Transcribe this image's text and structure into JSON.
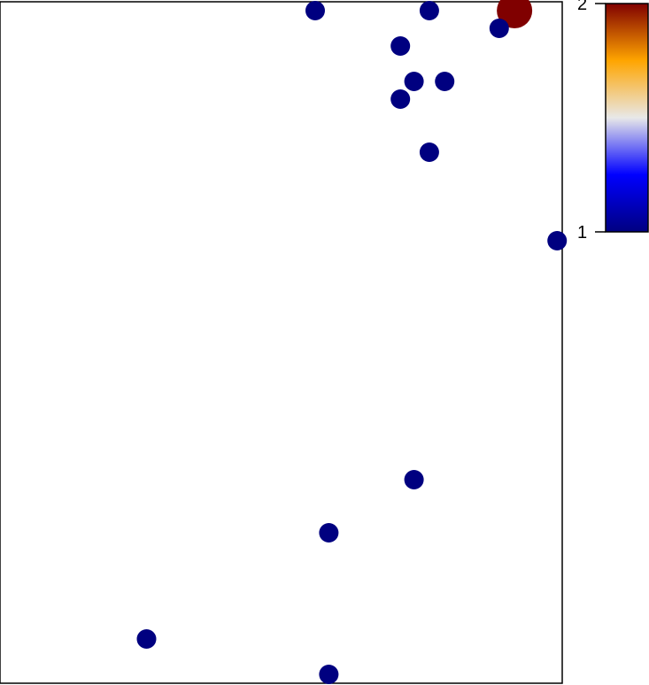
{
  "chart_data": {
    "type": "scatter",
    "title": "",
    "xlabel": "",
    "ylabel": "",
    "grid": false,
    "legend": "none",
    "xlim": [
      0,
      33
    ],
    "ylim": [
      0,
      38.5
    ],
    "points": [
      {
        "x": 18.5,
        "y": 38.0,
        "value": 1
      },
      {
        "x": 25.2,
        "y": 38.0,
        "value": 1
      },
      {
        "x": 30.2,
        "y": 38.0,
        "value": 2
      },
      {
        "x": 29.3,
        "y": 37.0,
        "value": 1
      },
      {
        "x": 23.5,
        "y": 36.0,
        "value": 1
      },
      {
        "x": 24.3,
        "y": 34.0,
        "value": 1
      },
      {
        "x": 26.1,
        "y": 34.0,
        "value": 1
      },
      {
        "x": 23.5,
        "y": 33.0,
        "value": 1
      },
      {
        "x": 25.2,
        "y": 30.0,
        "value": 1
      },
      {
        "x": 32.7,
        "y": 25.0,
        "value": 1
      },
      {
        "x": 24.3,
        "y": 11.5,
        "value": 1
      },
      {
        "x": 19.3,
        "y": 8.5,
        "value": 1
      },
      {
        "x": 8.6,
        "y": 2.5,
        "value": 1
      },
      {
        "x": 19.3,
        "y": 0.5,
        "value": 1
      }
    ],
    "colorbar": {
      "min": 1,
      "max": 2,
      "tick_labels": [
        "1",
        "2"
      ],
      "colors": [
        "#000080",
        "#0000ff",
        "#e8e8e8",
        "#ffa500",
        "#800000"
      ]
    }
  }
}
